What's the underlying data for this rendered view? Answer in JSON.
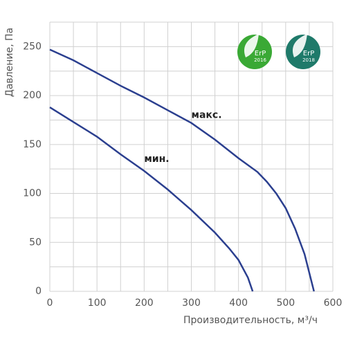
{
  "chart_data": {
    "type": "line",
    "x_label": "Производительность, м³/ч",
    "y_label": "Давление, Па",
    "xlim": [
      0,
      600
    ],
    "xticks": [
      0,
      100,
      200,
      300,
      400,
      500,
      600
    ],
    "xminorticks": [
      50,
      150,
      250,
      350,
      450,
      550
    ],
    "ylim": [
      0,
      275
    ],
    "yticks": [
      0,
      50,
      100,
      150,
      200,
      250
    ],
    "yminorticks": [
      25,
      75,
      125,
      175,
      225,
      275
    ],
    "grid": true,
    "series": [
      {
        "name": "макс.",
        "color": "#2b3f8f",
        "x": [
          0,
          50,
          100,
          150,
          200,
          250,
          300,
          350,
          400,
          440,
          460,
          480,
          500,
          520,
          540,
          560
        ],
        "values": [
          247,
          236,
          223,
          210,
          198,
          185,
          172,
          155,
          136,
          122,
          112,
          100,
          85,
          64,
          38,
          0
        ],
        "label_at": [
          300,
          180
        ]
      },
      {
        "name": "мин.",
        "color": "#2b3f8f",
        "x": [
          0,
          50,
          100,
          150,
          200,
          250,
          300,
          350,
          380,
          400,
          420,
          430
        ],
        "values": [
          188,
          173,
          158,
          140,
          123,
          104,
          83,
          60,
          44,
          32,
          14,
          0
        ],
        "label_at": [
          200,
          135
        ]
      }
    ],
    "badges": [
      {
        "label": "ErP",
        "year": "2016",
        "color": "#3aa935"
      },
      {
        "label": "ErP",
        "year": "2018",
        "color": "#1f7a6a"
      }
    ]
  }
}
